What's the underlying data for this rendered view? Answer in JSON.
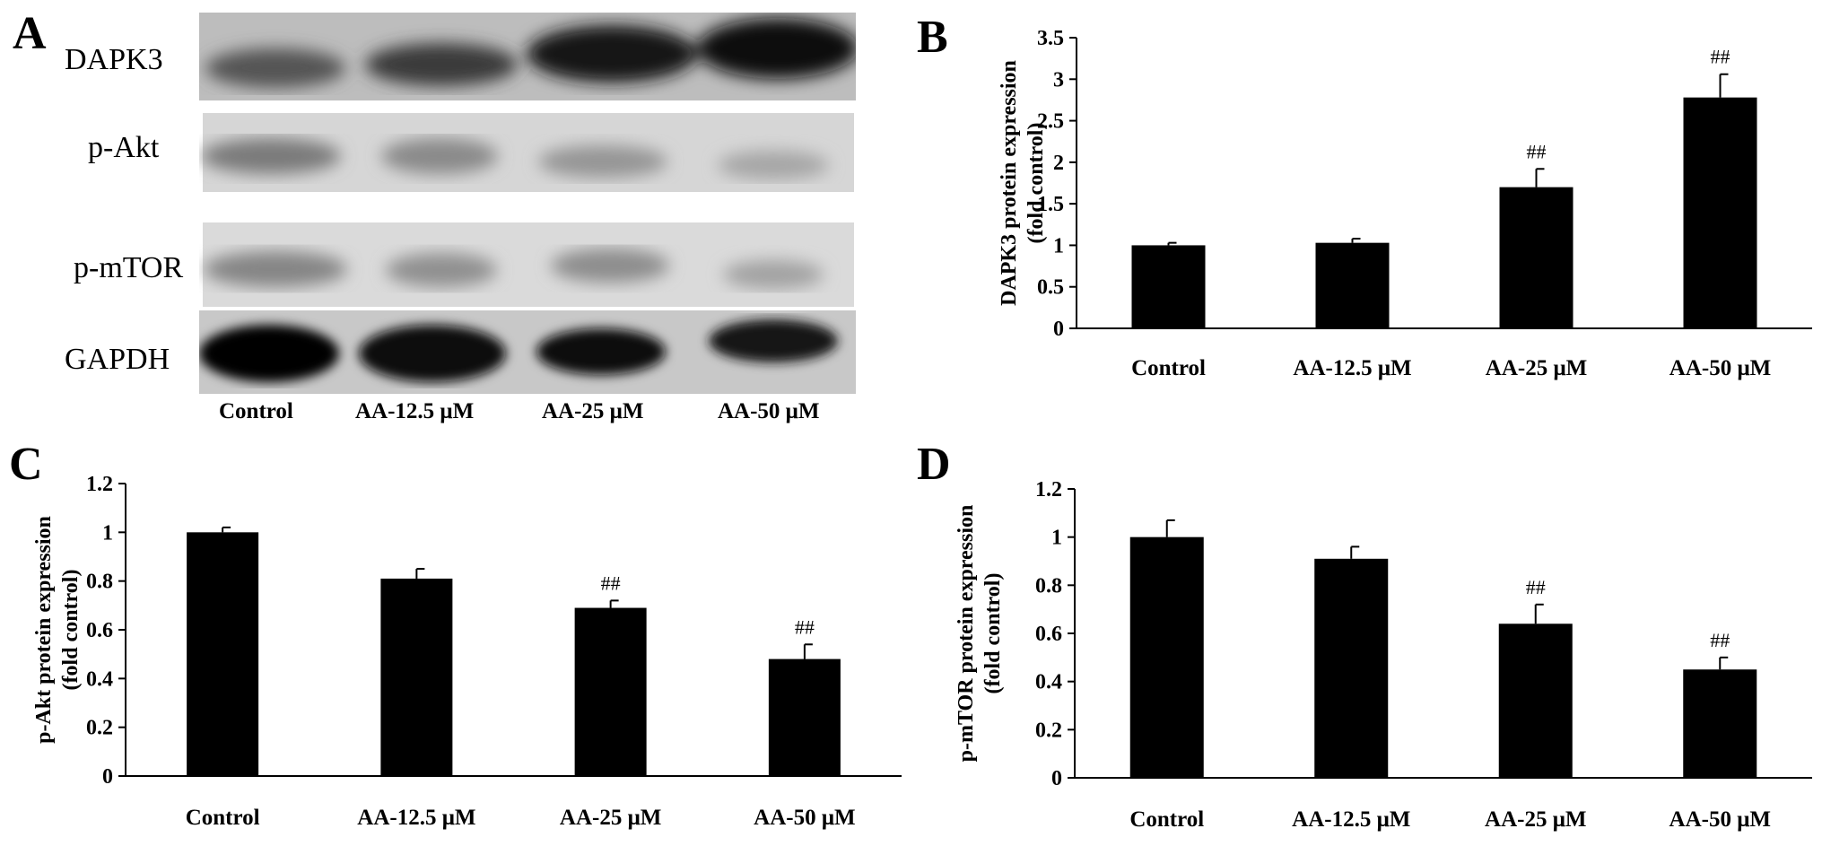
{
  "panel_a": {
    "letter": "A",
    "proteins": [
      "DAPK3",
      "p-Akt",
      "p-mTOR",
      "GAPDH"
    ],
    "lanes": [
      "Control",
      "AA-12.5 μM",
      "AA-25 μM",
      "AA-50 μM"
    ]
  },
  "chart_data": [
    {
      "panel": "B",
      "type": "bar",
      "title": "",
      "ylabel_line1": "DAPK3 protein expression",
      "ylabel_line2": "(fold control)",
      "xlabel": "",
      "categories": [
        "Control",
        "AA-12.5 μM",
        "AA-25 μM",
        "AA-50 μM"
      ],
      "values": [
        1.0,
        1.03,
        1.7,
        2.78
      ],
      "errors": [
        0.03,
        0.05,
        0.22,
        0.28
      ],
      "annotations": [
        "",
        "",
        "##",
        "##"
      ],
      "ylim": [
        0,
        3.5
      ],
      "yticks": [
        "0",
        "0.5",
        "1",
        "1.5",
        "2",
        "2.5",
        "3",
        "3.5"
      ],
      "bar_color": "#000000",
      "grid": false,
      "legend": "none"
    },
    {
      "panel": "C",
      "type": "bar",
      "title": "",
      "ylabel_line1": "p-Akt protein expression",
      "ylabel_line2": "(fold control)",
      "xlabel": "",
      "categories": [
        "Control",
        "AA-12.5 μM",
        "AA-25 μM",
        "AA-50 μM"
      ],
      "values": [
        1.0,
        0.81,
        0.69,
        0.48
      ],
      "errors": [
        0.02,
        0.04,
        0.03,
        0.06
      ],
      "annotations": [
        "",
        "",
        "##",
        "##"
      ],
      "ylim": [
        0,
        1.2
      ],
      "yticks": [
        "0",
        "0.2",
        "0.4",
        "0.6",
        "0.8",
        "1",
        "1.2"
      ],
      "bar_color": "#000000",
      "grid": false,
      "legend": "none"
    },
    {
      "panel": "D",
      "type": "bar",
      "title": "",
      "ylabel_line1": "p-mTOR protein expression",
      "ylabel_line2": "(fold control)",
      "xlabel": "",
      "categories": [
        "Control",
        "AA-12.5 μM",
        "AA-25 μM",
        "AA-50 μM"
      ],
      "values": [
        1.0,
        0.91,
        0.64,
        0.45
      ],
      "errors": [
        0.07,
        0.05,
        0.08,
        0.05
      ],
      "annotations": [
        "",
        "",
        "##",
        "##"
      ],
      "ylim": [
        0,
        1.2
      ],
      "yticks": [
        "0",
        "0.2",
        "0.4",
        "0.6",
        "0.8",
        "1",
        "1.2"
      ],
      "bar_color": "#000000",
      "grid": false,
      "legend": "none"
    }
  ]
}
